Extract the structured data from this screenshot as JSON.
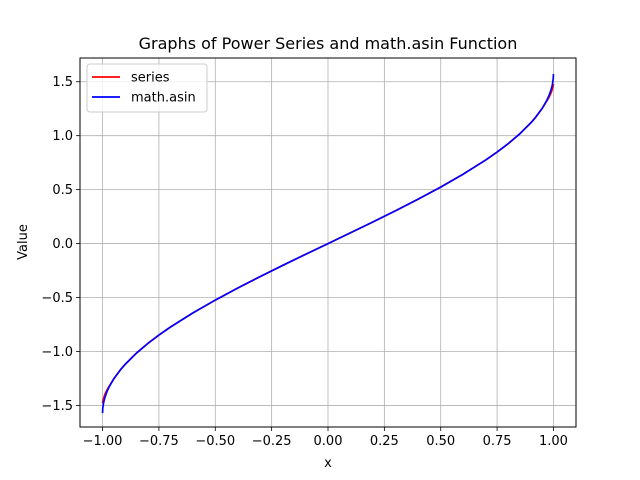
{
  "chart_data": {
    "type": "line",
    "title": "Graphs of Power Series and math.asin Function",
    "xlabel": "x",
    "ylabel": "Value",
    "xlim": [
      -1.1,
      1.1
    ],
    "ylim": [
      -1.7,
      1.72
    ],
    "x_ticks": [
      -1.0,
      -0.75,
      -0.5,
      -0.25,
      0.0,
      0.25,
      0.5,
      0.75,
      1.0
    ],
    "x_tick_labels": [
      "−1.00",
      "−0.75",
      "−0.50",
      "−0.25",
      "0.00",
      "0.25",
      "0.50",
      "0.75",
      "1.00"
    ],
    "y_ticks": [
      -1.5,
      -1.0,
      -0.5,
      0.0,
      0.5,
      1.0,
      1.5
    ],
    "y_tick_labels": [
      "−1.5",
      "−1.0",
      "−0.5",
      "0.0",
      "0.5",
      "1.0",
      "1.5"
    ],
    "grid": true,
    "legend_position": "top-left",
    "x": [
      -1.0,
      -0.999,
      -0.995,
      -0.99,
      -0.98,
      -0.97,
      -0.95,
      -0.92,
      -0.9,
      -0.85,
      -0.8,
      -0.75,
      -0.7,
      -0.6,
      -0.5,
      -0.4,
      -0.3,
      -0.2,
      -0.1,
      0.0,
      0.1,
      0.2,
      0.3,
      0.4,
      0.5,
      0.6,
      0.7,
      0.75,
      0.8,
      0.85,
      0.9,
      0.92,
      0.95,
      0.97,
      0.98,
      0.99,
      0.995,
      0.999,
      1.0
    ],
    "series": [
      {
        "name": "series",
        "color": "#ff0000",
        "values": [
          -1.48,
          -1.465,
          -1.43,
          -1.4,
          -1.355,
          -1.32,
          -1.253,
          -1.168,
          -1.12,
          -1.016,
          -0.927,
          -0.848,
          -0.775,
          -0.644,
          -0.524,
          -0.412,
          -0.305,
          -0.201,
          -0.1,
          0.0,
          0.1,
          0.201,
          0.305,
          0.412,
          0.524,
          0.644,
          0.775,
          0.848,
          0.927,
          1.016,
          1.12,
          1.168,
          1.253,
          1.32,
          1.355,
          1.4,
          1.43,
          1.465,
          1.48
        ]
      },
      {
        "name": "math.asin",
        "color": "#0000ff",
        "values": [
          -1.5708,
          -1.5261,
          -1.4706,
          -1.4293,
          -1.3705,
          -1.3252,
          -1.2532,
          -1.1681,
          -1.1198,
          -1.016,
          -0.9273,
          -0.8481,
          -0.7754,
          -0.6435,
          -0.5236,
          -0.4115,
          -0.3047,
          -0.2014,
          -0.1002,
          0.0,
          0.1002,
          0.2014,
          0.3047,
          0.4115,
          0.5236,
          0.6435,
          0.7754,
          0.8481,
          0.9273,
          1.016,
          1.1198,
          1.1681,
          1.2532,
          1.3252,
          1.3705,
          1.4293,
          1.4706,
          1.5261,
          1.5708
        ]
      }
    ]
  }
}
